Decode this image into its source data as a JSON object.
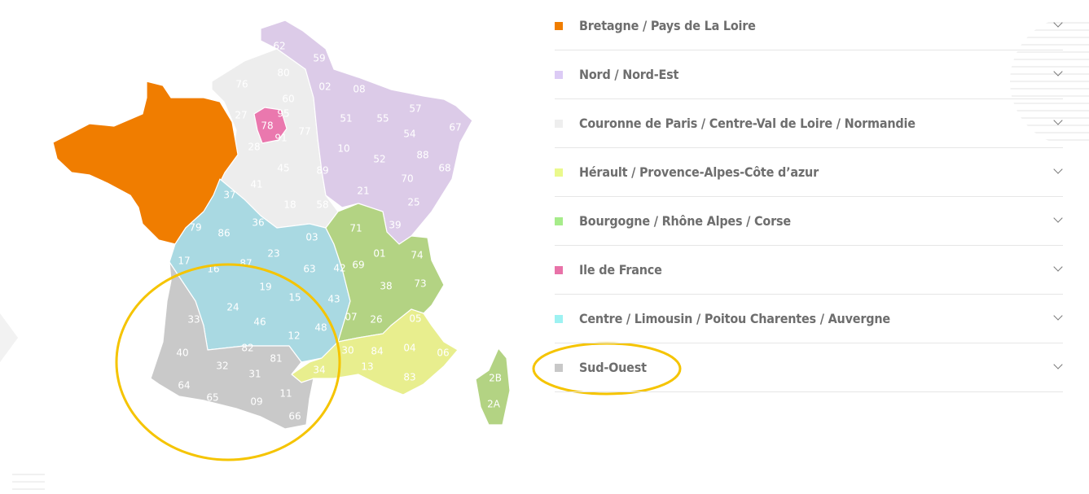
{
  "colors": {
    "bretagne": "#f07d00",
    "nord": "#dccbe8",
    "couronne": "#ededed",
    "herault": "#e8ee8e",
    "bourgogne": "#b3d383",
    "idf": "#ea78ae",
    "centre": "#a9d9e2",
    "sudouest": "#c9c9c9",
    "highlight": "#f5c400"
  },
  "legend": [
    {
      "label": "Bretagne / Pays de La Loire",
      "color": "#f07d00",
      "icon": "chevron-down-icon"
    },
    {
      "label": "Nord / Nord-Est",
      "color": "#dccbf5",
      "icon": "chevron-down-icon"
    },
    {
      "label": "Couronne de Paris / Centre-Val de Loire / Normandie",
      "color": "#eeeeee",
      "icon": "chevron-down-icon"
    },
    {
      "label": "Hérault / Provence-Alpes-Côte d’azur",
      "color": "#eaf98c",
      "icon": "chevron-down-icon"
    },
    {
      "label": "Bourgogne / Rhône Alpes / Corse",
      "color": "#a6ec8a",
      "icon": "chevron-down-icon"
    },
    {
      "label": "Ile de France",
      "color": "#e872a8",
      "icon": "chevron-down-icon"
    },
    {
      "label": "Centre / Limousin / Poitou Charentes / Auvergne",
      "color": "#9df2f2",
      "icon": "chevron-down-icon"
    },
    {
      "label": "Sud-Ouest",
      "color": "#c8c8c8",
      "icon": "chevron-down-icon",
      "highlighted": true
    }
  ],
  "departments": [
    "62",
    "59",
    "80",
    "76",
    "02",
    "08",
    "60",
    "57",
    "27",
    "95",
    "78",
    "51",
    "55",
    "67",
    "77",
    "91",
    "54",
    "28",
    "10",
    "88",
    "52",
    "45",
    "89",
    "68",
    "70",
    "41",
    "21",
    "25",
    "18",
    "58",
    "37",
    "36",
    "86",
    "79",
    "71",
    "39",
    "03",
    "23",
    "01",
    "74",
    "17",
    "16",
    "87",
    "63",
    "42",
    "69",
    "73",
    "38",
    "19",
    "15",
    "43",
    "24",
    "46",
    "07",
    "26",
    "05",
    "33",
    "48",
    "12",
    "84",
    "04",
    "06",
    "30",
    "40",
    "82",
    "81",
    "32",
    "13",
    "2B",
    "34",
    "31",
    "83",
    "64",
    "65",
    "09",
    "11",
    "2A",
    "66"
  ]
}
